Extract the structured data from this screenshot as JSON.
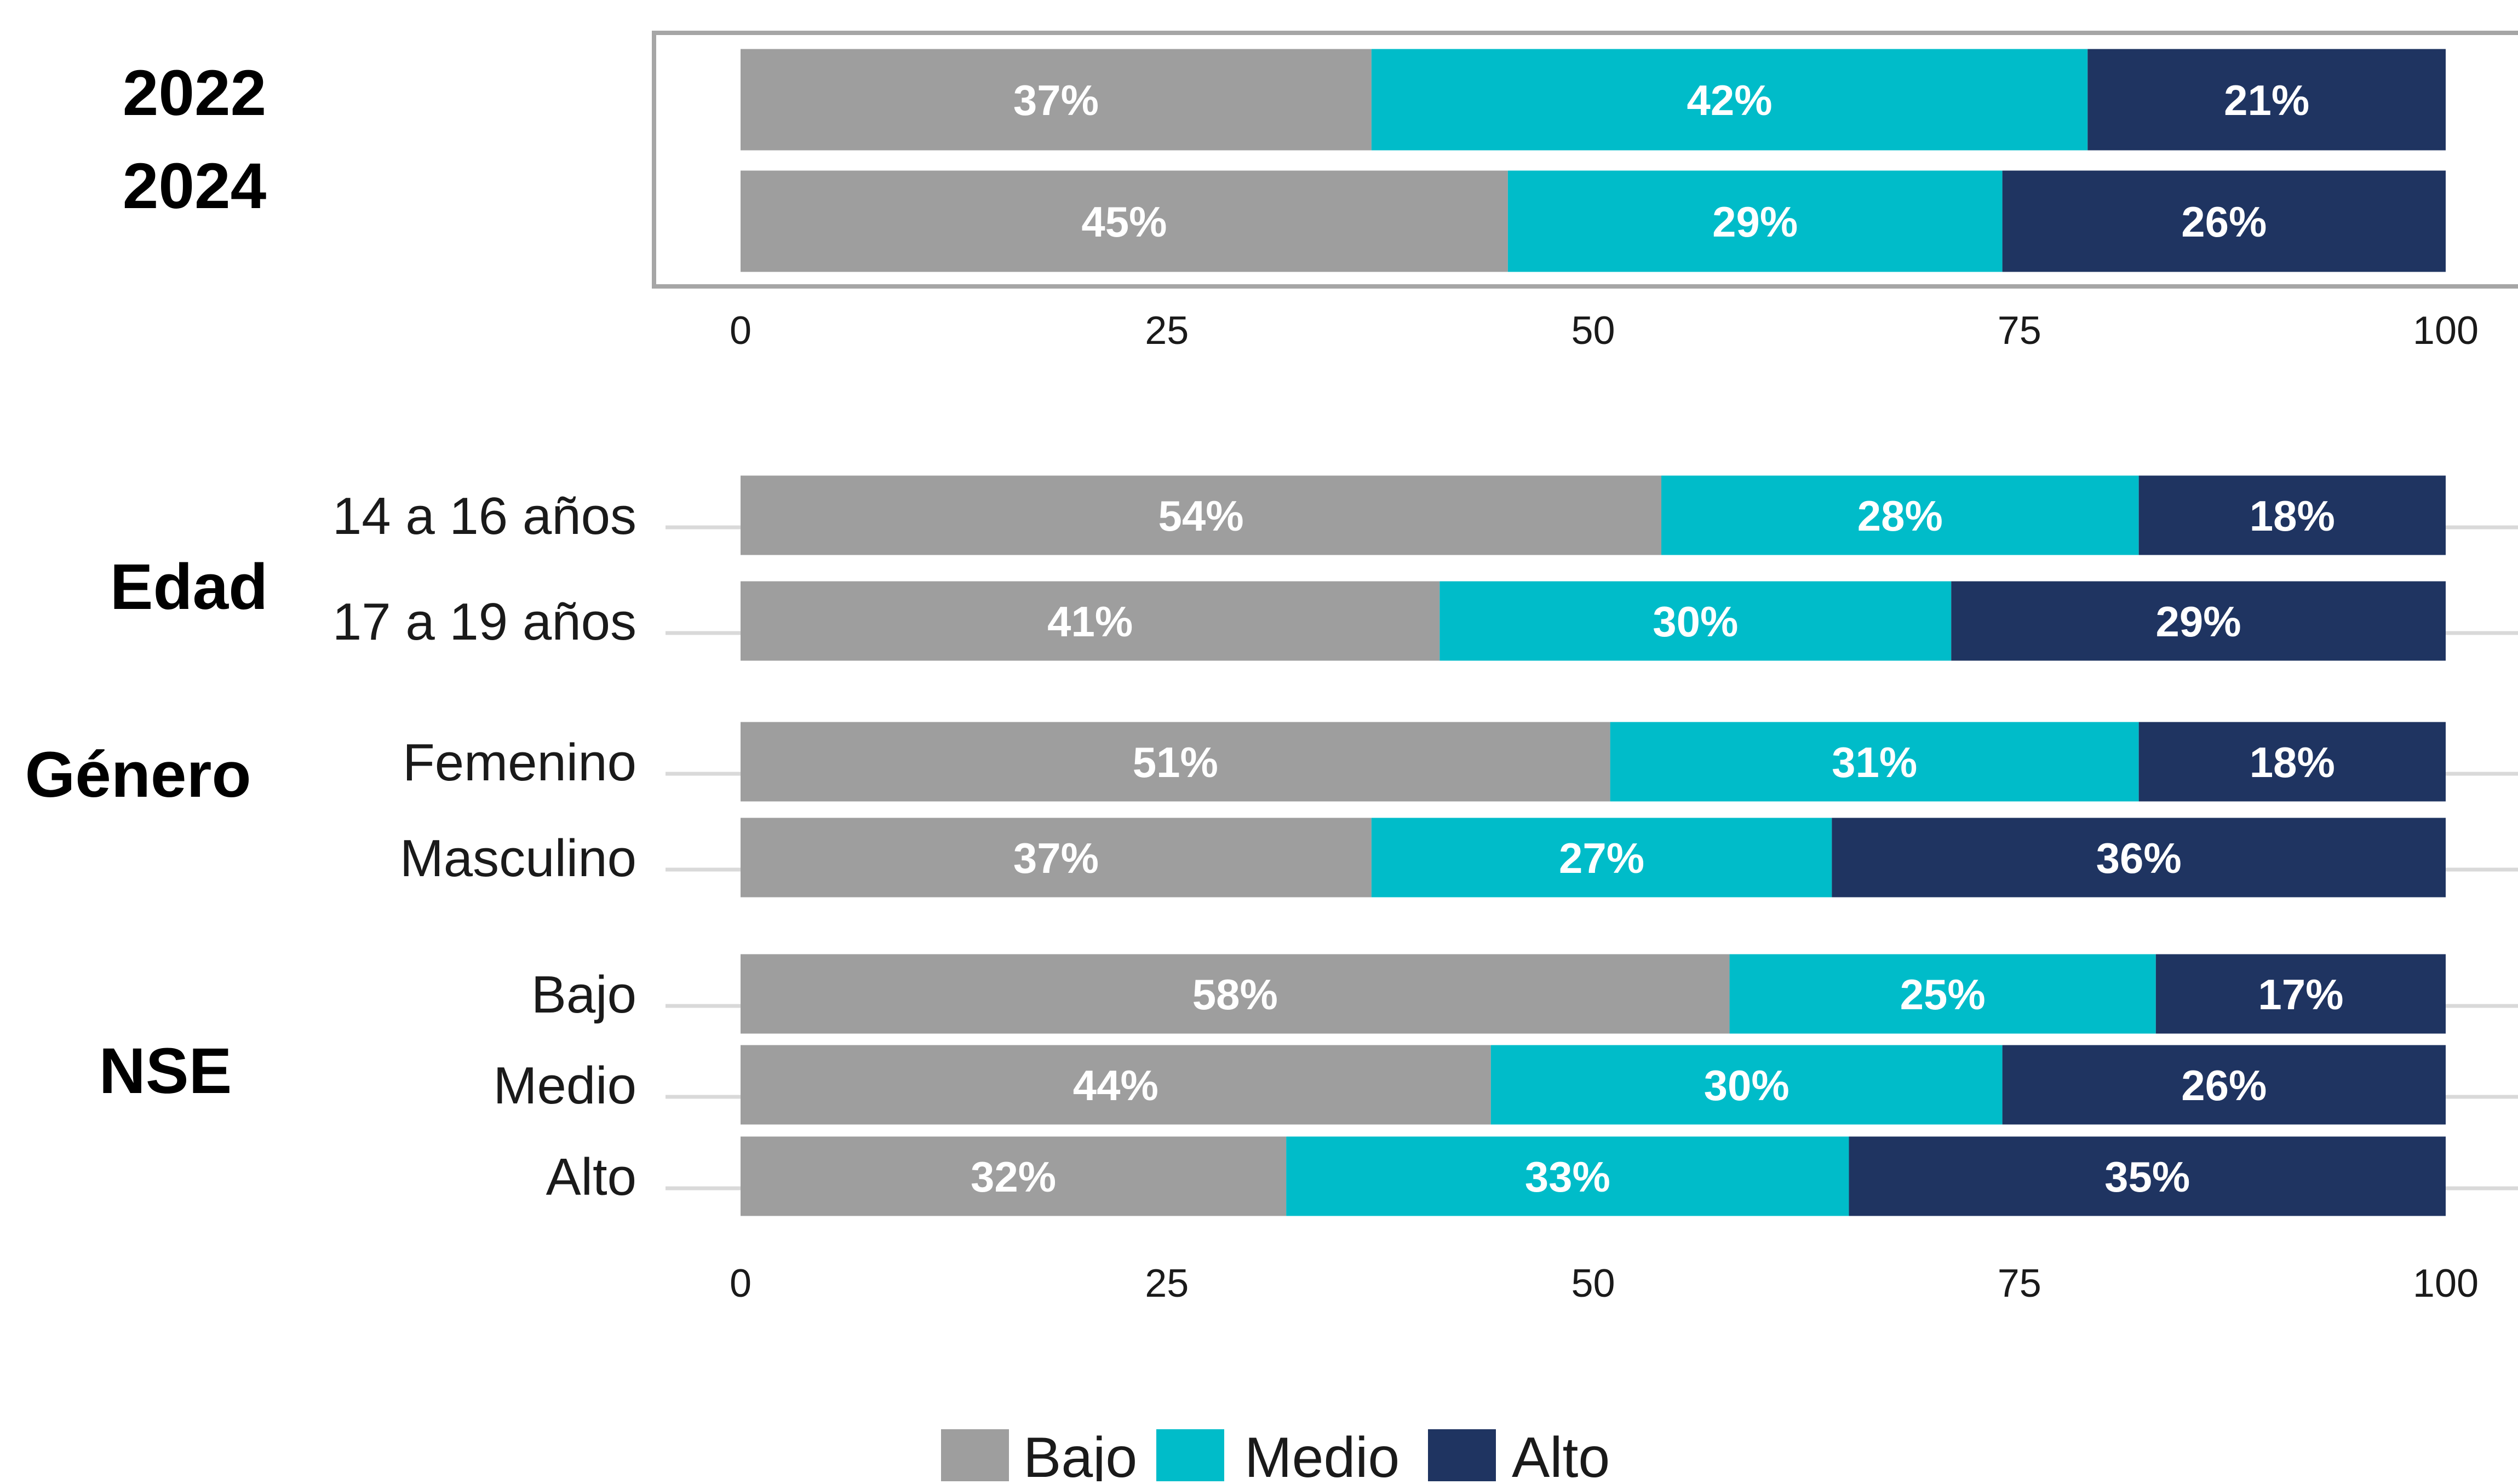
{
  "colors": {
    "bajo": "#9e9e9e",
    "medio": "#00bcc9",
    "alto": "#1f3461"
  },
  "chart_data": [
    {
      "type": "bar",
      "orientation": "horizontal",
      "stacked": true,
      "categories": [
        "2022",
        "2024"
      ],
      "series": [
        {
          "name": "Bajo",
          "values": [
            37,
            45
          ]
        },
        {
          "name": "Medio",
          "values": [
            42,
            29
          ]
        },
        {
          "name": "Alto",
          "values": [
            21,
            26
          ]
        }
      ],
      "data_labels": [
        [
          "37%",
          "42%",
          "21%"
        ],
        [
          "45%",
          "29%",
          "26%"
        ]
      ],
      "xlim": [
        0,
        100
      ],
      "xticks": [
        "0",
        "25",
        "50",
        "75",
        "100"
      ]
    },
    {
      "type": "bar",
      "orientation": "horizontal",
      "stacked": true,
      "groups": [
        {
          "label": "Edad",
          "categories": [
            "14 a 16 años",
            "17 a 19 años"
          ]
        },
        {
          "label": "Género",
          "categories": [
            "Femenino",
            "Masculino"
          ]
        },
        {
          "label": "NSE",
          "categories": [
            "Bajo",
            "Medio",
            "Alto"
          ]
        }
      ],
      "categories": [
        "14 a 16 años",
        "17 a 19 años",
        "Femenino",
        "Masculino",
        "Bajo",
        "Medio",
        "Alto"
      ],
      "series": [
        {
          "name": "Bajo",
          "values": [
            54,
            41,
            51,
            37,
            58,
            44,
            32
          ]
        },
        {
          "name": "Medio",
          "values": [
            28,
            30,
            31,
            27,
            25,
            30,
            33
          ]
        },
        {
          "name": "Alto",
          "values": [
            18,
            29,
            18,
            36,
            17,
            26,
            35
          ]
        }
      ],
      "data_labels": [
        [
          "54%",
          "28%",
          "18%"
        ],
        [
          "41%",
          "30%",
          "29%"
        ],
        [
          "51%",
          "31%",
          "18%"
        ],
        [
          "37%",
          "27%",
          "36%"
        ],
        [
          "58%",
          "25%",
          "17%"
        ],
        [
          "44%",
          "30%",
          "26%"
        ],
        [
          "32%",
          "33%",
          "35%"
        ]
      ],
      "xlim": [
        0,
        100
      ],
      "xticks": [
        "0",
        "25",
        "50",
        "75",
        "100"
      ]
    }
  ],
  "legend": {
    "placement": "bottom-center",
    "items": [
      {
        "label": "Bajo",
        "color": "#9e9e9e"
      },
      {
        "label": "Medio",
        "color": "#00bcc9"
      },
      {
        "label": "Alto",
        "color": "#1f3461"
      }
    ]
  }
}
